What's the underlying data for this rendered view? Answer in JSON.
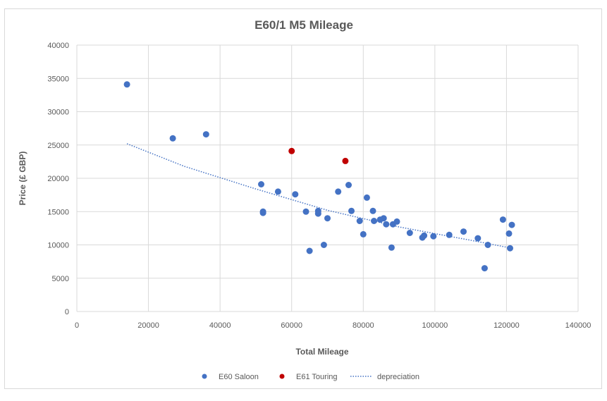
{
  "chart_data": {
    "type": "scatter",
    "title": "E60/1 M5 Mileage",
    "xlabel": "Total Mileage",
    "ylabel": "Price (£ GBP)",
    "xlim": [
      0,
      140000
    ],
    "ylim": [
      0,
      40000
    ],
    "xticks": [
      "0",
      "20000",
      "40000",
      "60000",
      "80000",
      "100000",
      "120000",
      "140000"
    ],
    "yticks": [
      "0",
      "5000",
      "10000",
      "15000",
      "20000",
      "25000",
      "30000",
      "35000",
      "40000"
    ],
    "grid": true,
    "legend_position": "bottom",
    "series": [
      {
        "name": "E60 Saloon",
        "color": "#4472c4",
        "points": [
          [
            14000,
            34100
          ],
          [
            26800,
            26000
          ],
          [
            36100,
            26600
          ],
          [
            51500,
            19100
          ],
          [
            52000,
            15000
          ],
          [
            52000,
            14800
          ],
          [
            56200,
            18000
          ],
          [
            61000,
            17600
          ],
          [
            64000,
            15000
          ],
          [
            65000,
            9100
          ],
          [
            67400,
            15100
          ],
          [
            67400,
            14700
          ],
          [
            69000,
            10000
          ],
          [
            70000,
            14000
          ],
          [
            73000,
            18000
          ],
          [
            75900,
            19000
          ],
          [
            76700,
            15100
          ],
          [
            79000,
            13600
          ],
          [
            80000,
            11600
          ],
          [
            81000,
            17100
          ],
          [
            82700,
            15100
          ],
          [
            83000,
            13600
          ],
          [
            84700,
            13800
          ],
          [
            85700,
            14000
          ],
          [
            86400,
            13100
          ],
          [
            87900,
            9600
          ],
          [
            88300,
            13100
          ],
          [
            89400,
            13500
          ],
          [
            93000,
            11800
          ],
          [
            96500,
            11100
          ],
          [
            97000,
            11400
          ],
          [
            99600,
            11300
          ],
          [
            104000,
            11500
          ],
          [
            108000,
            12000
          ],
          [
            112000,
            11000
          ],
          [
            113900,
            6500
          ],
          [
            114800,
            10000
          ],
          [
            119000,
            13800
          ],
          [
            120700,
            11700
          ],
          [
            121000,
            9500
          ],
          [
            121500,
            13000
          ]
        ]
      },
      {
        "name": "E61 Touring",
        "color": "#c00000",
        "points": [
          [
            60000,
            24100
          ],
          [
            75000,
            22600
          ]
        ]
      }
    ],
    "trendline": {
      "name": "depreciation",
      "color": "#4472c4",
      "style": "dotted",
      "points": [
        [
          14000,
          25200
        ],
        [
          30000,
          21800
        ],
        [
          50000,
          18400
        ],
        [
          70000,
          15200
        ],
        [
          90000,
          12700
        ],
        [
          110000,
          10700
        ],
        [
          121500,
          9500
        ]
      ]
    }
  }
}
